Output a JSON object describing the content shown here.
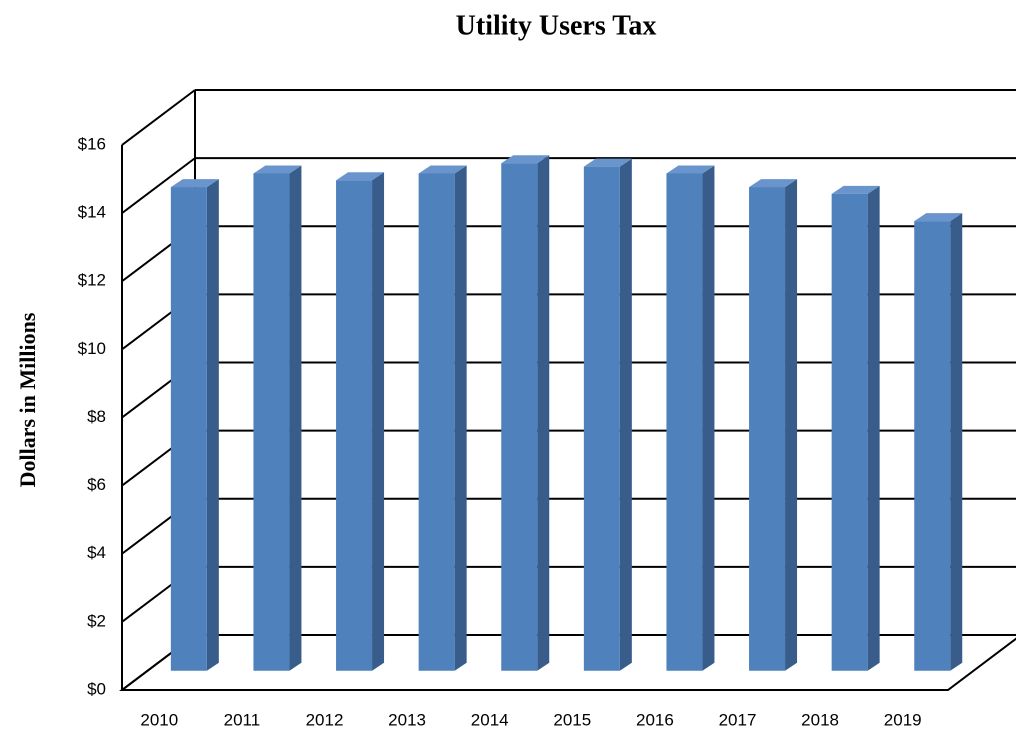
{
  "chart_data": {
    "type": "bar3d",
    "title": "Utility Users Tax",
    "ylabel": "Dollars  in  Millions",
    "categories": [
      "2010",
      "2011",
      "2012",
      "2013",
      "2014",
      "2015",
      "2016",
      "2017",
      "2018",
      "2019"
    ],
    "values": [
      14.2,
      14.6,
      14.4,
      14.6,
      14.9,
      14.8,
      14.6,
      14.2,
      14.0,
      13.2
    ],
    "color": "#4f81bd",
    "ylim": [
      0,
      16
    ],
    "yticks": [
      {
        "value": 0,
        "label": "$0"
      },
      {
        "value": 2,
        "label": "$2"
      },
      {
        "value": 4,
        "label": "$4"
      },
      {
        "value": 6,
        "label": "$6"
      },
      {
        "value": 8,
        "label": "$8"
      },
      {
        "value": 10,
        "label": "$10"
      },
      {
        "value": 12,
        "label": "$12"
      },
      {
        "value": 14,
        "label": "$14"
      },
      {
        "value": 16,
        "label": "$16"
      }
    ],
    "grid": true
  }
}
